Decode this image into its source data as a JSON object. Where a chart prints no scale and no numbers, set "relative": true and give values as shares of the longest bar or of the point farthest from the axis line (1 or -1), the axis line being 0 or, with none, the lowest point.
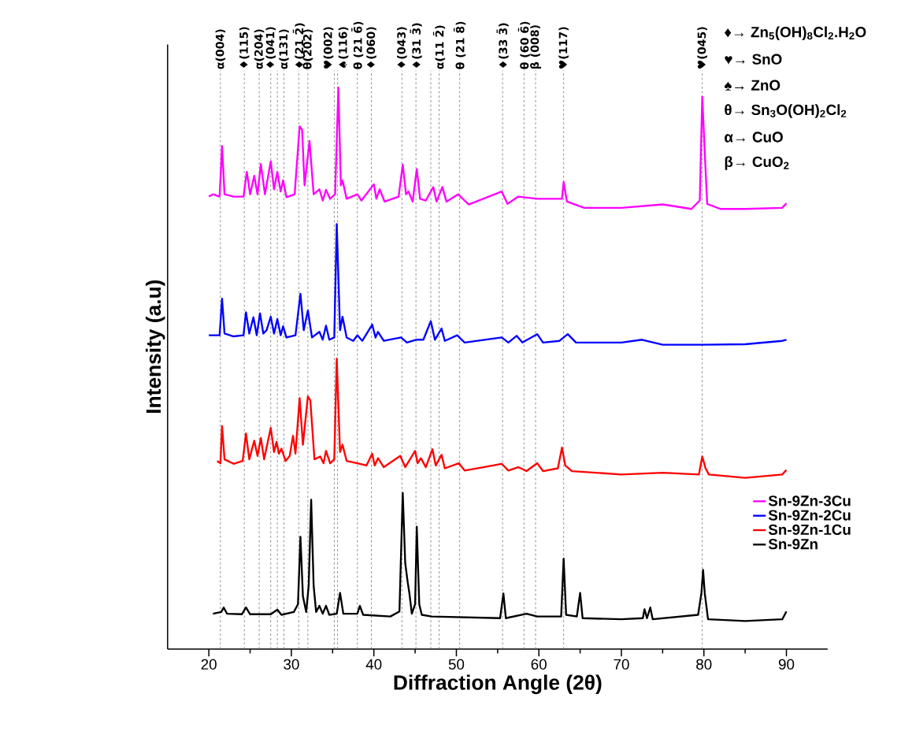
{
  "chart_data": {
    "type": "line",
    "relative": true,
    "xlabel": "Diffraction Angle (2θ)",
    "ylabel": "Intensity (a.u)",
    "xlim": [
      15,
      95
    ],
    "xticks": [
      20,
      30,
      40,
      50,
      60,
      70,
      80,
      90
    ],
    "legend": "bottom right",
    "line_style": "solid",
    "series": [
      {
        "name": "Sn-9Zn-3Cu",
        "color": "#ff00ff",
        "x": [
          20,
          20.5,
          21.3,
          21.6,
          21.9,
          23,
          24.2,
          24.6,
          25,
          25.5,
          25.9,
          26.3,
          26.8,
          27.5,
          27.9,
          28.3,
          28.7,
          29.0,
          29.4,
          30.4,
          31.0,
          31.3,
          31.6,
          32.2,
          32.7,
          33.4,
          33.8,
          34.2,
          34.7,
          35.3,
          35.7,
          36.0,
          36.2,
          36.7,
          38,
          38.5,
          40,
          40.3,
          40.7,
          41.3,
          43,
          43.5,
          43.9,
          44.2,
          44.7,
          45.2,
          45.6,
          46.3,
          47.2,
          47.6,
          48.3,
          48.8,
          50.2,
          51.5,
          55.5,
          56.2,
          57.5,
          59.8,
          62.8,
          63.0,
          63.4,
          65.5,
          70,
          75,
          78.5,
          79.5,
          79.8,
          80.1,
          80.4,
          82,
          85,
          89.5,
          90
        ],
        "values": [
          0.806,
          0.81,
          0.806,
          0.896,
          0.81,
          0.806,
          0.806,
          0.85,
          0.81,
          0.843,
          0.81,
          0.864,
          0.81,
          0.869,
          0.819,
          0.85,
          0.815,
          0.835,
          0.805,
          0.81,
          0.931,
          0.925,
          0.826,
          0.905,
          0.81,
          0.819,
          0.799,
          0.818,
          0.802,
          0.81,
          1.0,
          0.826,
          0.835,
          0.802,
          0.81,
          0.799,
          0.828,
          0.802,
          0.819,
          0.797,
          0.806,
          0.863,
          0.81,
          0.815,
          0.797,
          0.855,
          0.802,
          0.799,
          0.823,
          0.797,
          0.823,
          0.797,
          0.81,
          0.792,
          0.815,
          0.793,
          0.806,
          0.802,
          0.802,
          0.832,
          0.797,
          0.786,
          0.786,
          0.792,
          0.784,
          0.799,
          0.984,
          0.885,
          0.793,
          0.784,
          0.784,
          0.786,
          0.794
        ]
      },
      {
        "name": "Sn-9Zn-2Cu",
        "color": "#0000ff",
        "x": [
          20,
          21.3,
          21.6,
          21.9,
          23,
          24.2,
          24.5,
          24.9,
          25.4,
          25.8,
          26.2,
          26.6,
          27.0,
          27.5,
          27.9,
          28.3,
          28.7,
          29.0,
          29.4,
          30.5,
          31.1,
          31.5,
          32.0,
          32.5,
          33.4,
          33.8,
          34.2,
          34.6,
          35.2,
          35.5,
          35.9,
          36.2,
          36.7,
          37.5,
          38,
          38.6,
          39.8,
          40.2,
          40.5,
          41.2,
          43.3,
          44,
          45.1,
          46,
          46.9,
          47.4,
          48.2,
          48.6,
          50.1,
          51,
          55.5,
          56.3,
          57.3,
          58,
          59.8,
          60.5,
          62.5,
          63.5,
          64.5,
          70,
          72.5,
          75,
          80,
          85,
          89.5,
          90
        ],
        "values": [
          0.559,
          0.559,
          0.624,
          0.562,
          0.557,
          0.559,
          0.6,
          0.562,
          0.591,
          0.559,
          0.598,
          0.562,
          0.568,
          0.592,
          0.562,
          0.588,
          0.559,
          0.575,
          0.555,
          0.559,
          0.633,
          0.568,
          0.603,
          0.555,
          0.565,
          0.551,
          0.576,
          0.551,
          0.555,
          0.757,
          0.568,
          0.592,
          0.555,
          0.549,
          0.559,
          0.549,
          0.578,
          0.555,
          0.565,
          0.549,
          0.555,
          0.546,
          0.551,
          0.551,
          0.584,
          0.551,
          0.571,
          0.549,
          0.559,
          0.546,
          0.555,
          0.546,
          0.558,
          0.546,
          0.561,
          0.546,
          0.549,
          0.561,
          0.546,
          0.546,
          0.551,
          0.542,
          0.542,
          0.543,
          0.549,
          0.551
        ]
      },
      {
        "name": "Sn-9Zn-1Cu",
        "color": "#ff0000",
        "x": [
          21,
          21.4,
          21.6,
          21.9,
          23,
          24.1,
          24.5,
          24.9,
          25.5,
          25.9,
          26.3,
          26.7,
          27.5,
          27.9,
          28.2,
          28.5,
          28.8,
          29.3,
          29.8,
          30.2,
          30.5,
          31.0,
          31.4,
          32.0,
          32.3,
          32.8,
          33.5,
          33.9,
          34.2,
          34.7,
          35.2,
          35.5,
          35.9,
          36.2,
          36.7,
          38,
          39.1,
          39.8,
          40.1,
          40.5,
          41.2,
          43.2,
          43.8,
          45.0,
          45.3,
          45.7,
          46.3,
          47.1,
          47.5,
          48.2,
          48.6,
          50.3,
          51,
          55.5,
          56.3,
          57.5,
          58.5,
          59.8,
          60.5,
          62.3,
          62.8,
          63.2,
          64,
          70,
          75,
          79.4,
          79.8,
          80.2,
          80.6,
          85,
          89.5,
          90
        ],
        "values": [
          0.335,
          0.331,
          0.397,
          0.338,
          0.33,
          0.335,
          0.384,
          0.338,
          0.371,
          0.344,
          0.376,
          0.338,
          0.394,
          0.351,
          0.369,
          0.348,
          0.357,
          0.335,
          0.344,
          0.38,
          0.348,
          0.447,
          0.364,
          0.45,
          0.443,
          0.338,
          0.343,
          0.331,
          0.353,
          0.331,
          0.338,
          0.517,
          0.351,
          0.364,
          0.335,
          0.331,
          0.327,
          0.348,
          0.327,
          0.34,
          0.324,
          0.344,
          0.324,
          0.353,
          0.331,
          0.34,
          0.324,
          0.356,
          0.327,
          0.346,
          0.322,
          0.331,
          0.318,
          0.33,
          0.318,
          0.324,
          0.317,
          0.331,
          0.317,
          0.322,
          0.359,
          0.327,
          0.317,
          0.311,
          0.314,
          0.311,
          0.343,
          0.322,
          0.311,
          0.305,
          0.311,
          0.319
        ]
      },
      {
        "name": "Sn-9Zn",
        "color": "#000000",
        "x": [
          20.5,
          21.5,
          21.8,
          22.2,
          24,
          24.5,
          25,
          27.5,
          28.3,
          28.8,
          30.3,
          30.8,
          31.1,
          31.4,
          31.8,
          32.1,
          32.4,
          32.7,
          33,
          33.4,
          33.8,
          34.2,
          34.6,
          35.5,
          35.9,
          36.3,
          38,
          38.3,
          38.7,
          42,
          43.1,
          43.5,
          43.8,
          44.1,
          44.3,
          44.6,
          45.0,
          45.2,
          45.5,
          45.8,
          47,
          55.3,
          55.7,
          56,
          58.5,
          59.8,
          62.7,
          63.0,
          63.3,
          64.6,
          65.0,
          65.3,
          70,
          72.6,
          72.8,
          73.1,
          73.5,
          73.8,
          79.3,
          79.7,
          79.9,
          80.1,
          80.5,
          85,
          89.5,
          90
        ],
        "values": [
          0.063,
          0.066,
          0.074,
          0.063,
          0.062,
          0.074,
          0.062,
          0.062,
          0.07,
          0.061,
          0.066,
          0.08,
          0.2,
          0.094,
          0.066,
          0.113,
          0.266,
          0.113,
          0.066,
          0.077,
          0.063,
          0.077,
          0.061,
          0.063,
          0.1,
          0.063,
          0.063,
          0.077,
          0.061,
          0.058,
          0.067,
          0.278,
          0.153,
          0.119,
          0.1,
          0.063,
          0.08,
          0.218,
          0.08,
          0.061,
          0.058,
          0.055,
          0.099,
          0.055,
          0.063,
          0.058,
          0.058,
          0.161,
          0.061,
          0.058,
          0.1,
          0.055,
          0.053,
          0.055,
          0.071,
          0.055,
          0.074,
          0.053,
          0.061,
          0.1,
          0.141,
          0.1,
          0.053,
          0.05,
          0.053,
          0.067
        ]
      }
    ],
    "ref_lines": [
      {
        "axis": "x",
        "value": 21.4,
        "label": "α(004)",
        "line_style": "dashed",
        "color": "#555555"
      },
      {
        "axis": "x",
        "value": 24.3,
        "label": "♦(115)",
        "line_style": "dashed",
        "color": "#555555"
      },
      {
        "axis": "x",
        "value": 26.1,
        "label": "α(204)",
        "line_style": "dashed",
        "color": "#555555"
      },
      {
        "axis": "x",
        "value": 27.5,
        "label": "♦(041)",
        "line_style": "dashed",
        "color": "#555555"
      },
      {
        "axis": "x",
        "value": 28.3,
        "line_style": "dashed",
        "color": "#555555"
      },
      {
        "axis": "x",
        "value": 29.1,
        "label": "α(131)",
        "line_style": "dashed",
        "color": "#555555"
      },
      {
        "axis": "x",
        "value": 30.9,
        "label": "♦(21 2̄)",
        "line_style": "dashed",
        "color": "#555555"
      },
      {
        "axis": "x",
        "value": 32.0,
        "label": "θ(202)",
        "line_style": "dashed",
        "color": "#555555"
      },
      {
        "axis": "x",
        "value": 35.2,
        "label": "♥(002)",
        "line_style": "dashed",
        "color": "#555555"
      },
      {
        "axis": "x",
        "value": 35.6,
        "label": "♠(116)",
        "line_style": "dashed",
        "color": "#555555"
      },
      {
        "axis": "x",
        "value": 38.0,
        "label": "θ (21 6̄)",
        "line_style": "dashed",
        "color": "#555555"
      },
      {
        "axis": "x",
        "value": 39.7,
        "label": "♦(060)",
        "line_style": "dashed",
        "color": "#555555"
      },
      {
        "axis": "x",
        "value": 43.4,
        "label": "♦(043)",
        "line_style": "dashed",
        "color": "#555555"
      },
      {
        "axis": "x",
        "value": 45.1,
        "label": "♦(31 3̄)",
        "line_style": "dashed",
        "color": "#555555"
      },
      {
        "axis": "x",
        "value": 46.9,
        "line_style": "dashed",
        "color": "#555555"
      },
      {
        "axis": "x",
        "value": 47.9,
        "label": "α(11 2̄)",
        "line_style": "dashed",
        "color": "#555555"
      },
      {
        "axis": "x",
        "value": 50.4,
        "label": "θ (21 8̄)",
        "line_style": "dashed",
        "color": "#555555"
      },
      {
        "axis": "x",
        "value": 55.6,
        "label": "♦(33 3̄)",
        "line_style": "dashed",
        "color": "#555555"
      },
      {
        "axis": "x",
        "value": 58.2,
        "label": "θ (60 6̄)",
        "line_style": "dashed",
        "color": "#555555"
      },
      {
        "axis": "x",
        "value": 59.6,
        "label": "β (008)",
        "line_style": "dashed",
        "color": "#555555"
      },
      {
        "axis": "x",
        "value": 63.0,
        "label": "♥(117)",
        "line_style": "dashed",
        "color": "#555555"
      },
      {
        "axis": "x",
        "value": 79.8,
        "label": "♥(045)",
        "line_style": "dashed",
        "color": "#555555"
      }
    ],
    "annotations": [
      "♦→ Zn$_{5}$(OH)$_{8}$Cl$_{2}$.H$_{2}$O",
      "♥→ SnO",
      "♠→ ZnO",
      "θ→ Sn$_{3}$O(OH)$_{2}$Cl$_{2}$",
      "α→ CuO",
      "β→ CuO$_{2}$"
    ]
  }
}
